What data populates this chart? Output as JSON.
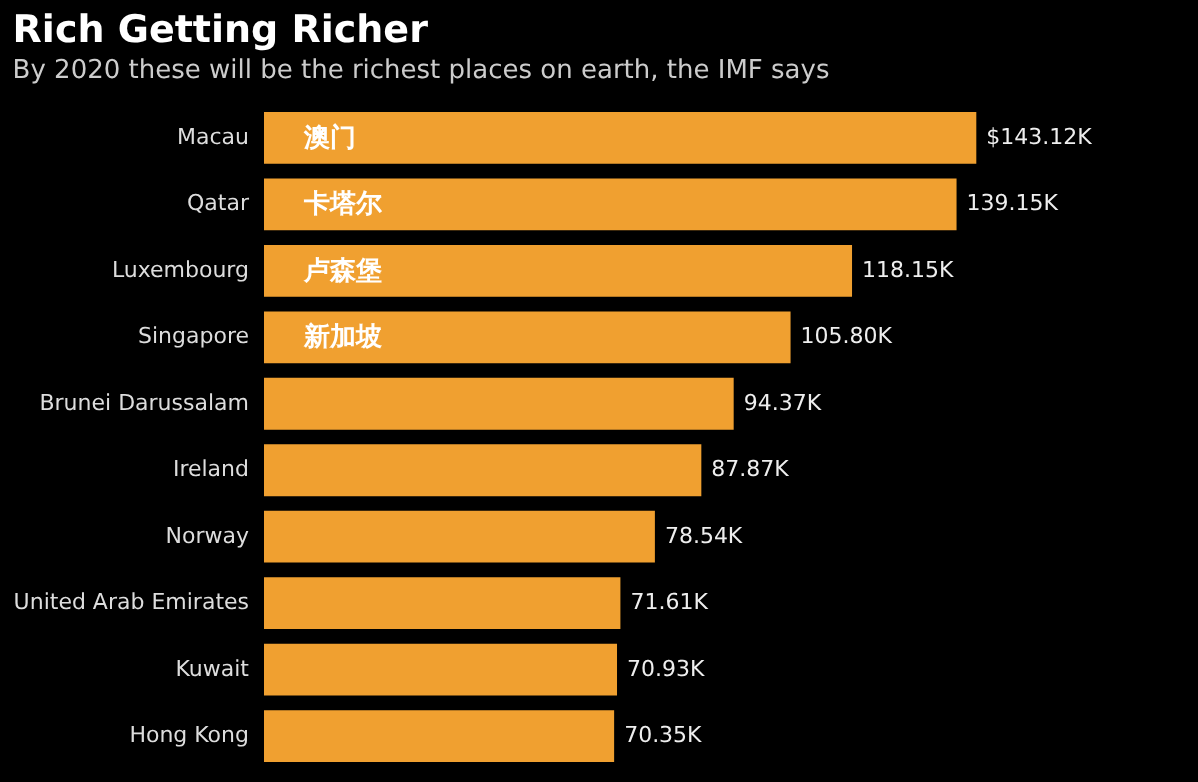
{
  "chart_data": {
    "type": "bar",
    "orientation": "horizontal",
    "title": "Rich Getting Richer",
    "subtitle": "By 2020 these will be the richest places on earth, the IMF says",
    "categories": [
      "Macau",
      "Qatar",
      "Luxembourg",
      "Singapore",
      "Brunei Darussalam",
      "Ireland",
      "Norway",
      "United Arab Emirates",
      "Kuwait",
      "Hong Kong"
    ],
    "values": [
      143.12,
      139.15,
      118.15,
      105.8,
      94.37,
      87.87,
      78.54,
      71.61,
      70.93,
      70.35
    ],
    "value_labels": [
      "$143.12K",
      "139.15K",
      "118.15K",
      "105.80K",
      "94.37K",
      "87.87K",
      "78.54K",
      "71.61K",
      "70.93K",
      "70.35K"
    ],
    "color": "#f0a030",
    "annotations": [
      {
        "text": "澳门",
        "y": "Macau"
      },
      {
        "text": "卡塔尔",
        "y": "Qatar"
      },
      {
        "text": "卢森堡",
        "y": "Luxembourg"
      },
      {
        "text": "新加坡",
        "y": "Singapore"
      }
    ],
    "grid": false
  }
}
